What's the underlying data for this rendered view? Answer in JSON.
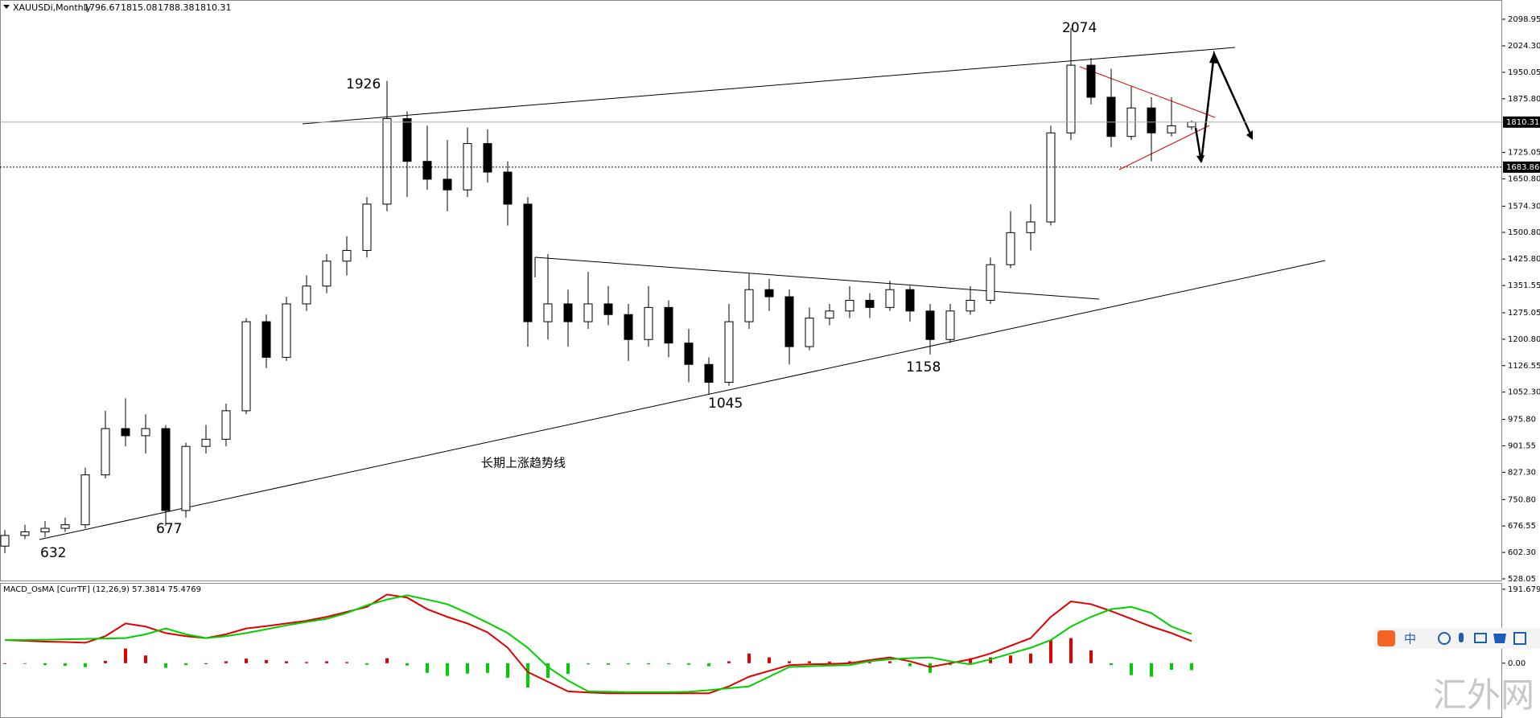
{
  "chart_data": [
    {
      "type": "candlestick",
      "title": "XAUUSDi,Monthly",
      "ylim": [
        523.5,
        2153
      ],
      "yticks": [
        2098.95,
        {
          "value": 2024.3,
          "label": "2024.30"
        },
        1950.05,
        {
          "value": 1875.8,
          "label": "1875.80"
        },
        1725.05,
        {
          "value": 1650.8,
          "label": "1650.80"
        },
        {
          "value": 1574.3,
          "label": "1574.30"
        },
        {
          "value": 1500.8,
          "label": "1500.80"
        },
        {
          "value": 1425.8,
          "label": "1425.80"
        },
        1351.55,
        1275.05,
        {
          "value": 1200.8,
          "label": "1200.80"
        },
        1126.55,
        {
          "value": 1052.3,
          "label": "1052.30"
        },
        {
          "value": 975.8,
          "label": "975.80"
        },
        901.55,
        {
          "value": 827.3,
          "label": "827.30"
        },
        {
          "value": 750.8,
          "label": "750.80"
        },
        676.55,
        {
          "value": 602.3,
          "label": "602.30"
        },
        528.05
      ],
      "up_color": "#ffffff",
      "down_color": "#000000",
      "support_level": 1683.86,
      "annotations": [
        2074,
        1926,
        632,
        677,
        1045,
        1158,
        "长期上涨趋势线"
      ],
      "ohlc": [
        [
          620,
          665,
          600,
          650
        ],
        [
          650,
          680,
          640,
          660
        ],
        [
          660,
          690,
          645,
          670
        ],
        [
          670,
          700,
          660,
          680
        ],
        [
          680,
          840,
          670,
          820
        ],
        [
          820,
          1000,
          810,
          950
        ],
        [
          950,
          1035,
          900,
          930
        ],
        [
          930,
          990,
          880,
          950
        ],
        [
          950,
          960,
          677,
          720
        ],
        [
          720,
          910,
          700,
          900
        ],
        [
          900,
          960,
          880,
          920
        ],
        [
          920,
          1020,
          900,
          1000
        ],
        [
          1000,
          1260,
          990,
          1250
        ],
        [
          1250,
          1270,
          1120,
          1150
        ],
        [
          1150,
          1320,
          1140,
          1300
        ],
        [
          1300,
          1380,
          1280,
          1350
        ],
        [
          1350,
          1440,
          1330,
          1420
        ],
        [
          1420,
          1490,
          1380,
          1450
        ],
        [
          1450,
          1600,
          1430,
          1580
        ],
        [
          1580,
          1926,
          1560,
          1820
        ],
        [
          1820,
          1840,
          1600,
          1700
        ],
        [
          1700,
          1800,
          1620,
          1650
        ],
        [
          1650,
          1760,
          1560,
          1620
        ],
        [
          1620,
          1795,
          1600,
          1750
        ],
        [
          1750,
          1790,
          1640,
          1670
        ],
        [
          1670,
          1700,
          1520,
          1580
        ],
        [
          1580,
          1600,
          1180,
          1250
        ],
        [
          1250,
          1440,
          1200,
          1300
        ],
        [
          1300,
          1340,
          1180,
          1250
        ],
        [
          1250,
          1390,
          1230,
          1300
        ],
        [
          1300,
          1350,
          1240,
          1270
        ],
        [
          1270,
          1300,
          1140,
          1200
        ],
        [
          1200,
          1350,
          1180,
          1290
        ],
        [
          1290,
          1310,
          1150,
          1190
        ],
        [
          1190,
          1230,
          1080,
          1130
        ],
        [
          1130,
          1150,
          1045,
          1080
        ],
        [
          1080,
          1300,
          1070,
          1250
        ],
        [
          1250,
          1385,
          1230,
          1340
        ],
        [
          1340,
          1370,
          1280,
          1320
        ],
        [
          1320,
          1340,
          1130,
          1180
        ],
        [
          1180,
          1290,
          1170,
          1260
        ],
        [
          1260,
          1300,
          1240,
          1280
        ],
        [
          1280,
          1350,
          1260,
          1310
        ],
        [
          1310,
          1330,
          1260,
          1290
        ],
        [
          1290,
          1365,
          1280,
          1340
        ],
        [
          1340,
          1350,
          1250,
          1280
        ],
        [
          1280,
          1300,
          1158,
          1200
        ],
        [
          1200,
          1300,
          1190,
          1280
        ],
        [
          1280,
          1350,
          1270,
          1310
        ],
        [
          1310,
          1430,
          1300,
          1410
        ],
        [
          1410,
          1560,
          1400,
          1500
        ],
        [
          1500,
          1580,
          1450,
          1530
        ],
        [
          1530,
          1800,
          1520,
          1780
        ],
        [
          1780,
          2074,
          1760,
          1970
        ],
        [
          1970,
          1990,
          1860,
          1880
        ],
        [
          1880,
          1960,
          1740,
          1770
        ],
        [
          1770,
          1910,
          1760,
          1850
        ],
        [
          1850,
          1880,
          1700,
          1780
        ],
        [
          1780,
          1880,
          1770,
          1800
        ],
        [
          1796.67,
          1815.08,
          1788.38,
          1810.31
        ]
      ]
    },
    {
      "type": "macd",
      "title": "MACD_OsMA [CurrTF] (12,26,9)",
      "ylim": [
        -140,
        206
      ],
      "yticks": [
        191.6791,
        {
          "value": 0,
          "label": "0.00"
        }
      ],
      "series": [
        {
          "color": "#e00000",
          "values": [
            60,
            58,
            56,
            55,
            53,
            70,
            103,
            95,
            78,
            70,
            65,
            75,
            90,
            96,
            103,
            110,
            120,
            133,
            146,
            178,
            170,
            140,
            120,
            103,
            80,
            40,
            -23,
            -48,
            -73,
            -76,
            -78,
            -78,
            -78,
            -78,
            -78,
            -78,
            -60,
            -35,
            -20,
            -5,
            -3,
            -2,
            0,
            8,
            15,
            5,
            -10,
            0,
            10,
            25,
            45,
            65,
            120,
            160,
            153,
            135,
            115,
            95,
            78,
            57.3814
          ]
        },
        {
          "color": "#00d000",
          "values": [
            60,
            60,
            61,
            62,
            63,
            64,
            65,
            75,
            90,
            75,
            65,
            70,
            78,
            88,
            98,
            107,
            115,
            130,
            150,
            165,
            176,
            165,
            153,
            130,
            105,
            78,
            40,
            -10,
            -45,
            -73,
            -74,
            -75,
            -75,
            -75,
            -74,
            -70,
            -65,
            -60,
            -35,
            -10,
            -8,
            -6,
            -5,
            5,
            10,
            13,
            15,
            5,
            -3,
            10,
            25,
            40,
            60,
            95,
            120,
            140,
            146,
            130,
            95,
            75.4769
          ]
        }
      ],
      "histogram": {
        "up_color": "#e00000",
        "down_color": "#00d000",
        "values": [
          0,
          -2,
          -5,
          -7,
          -10,
          6,
          38,
          20,
          -12,
          -5,
          0,
          5,
          12,
          8,
          5,
          3,
          5,
          3,
          -4,
          13,
          -6,
          -25,
          -33,
          -27,
          -25,
          -38,
          -63,
          -38,
          -28,
          -3,
          -4,
          -3,
          -3,
          -3,
          -4,
          -8,
          5,
          25,
          15,
          5,
          5,
          4,
          5,
          3,
          5,
          -8,
          -25,
          -5,
          13,
          15,
          20,
          25,
          60,
          65,
          33,
          -5,
          -31,
          -35,
          -17,
          -18
        ]
      }
    }
  ],
  "toolbar": {
    "input_label": "中"
  },
  "watermark": "汇外网"
}
